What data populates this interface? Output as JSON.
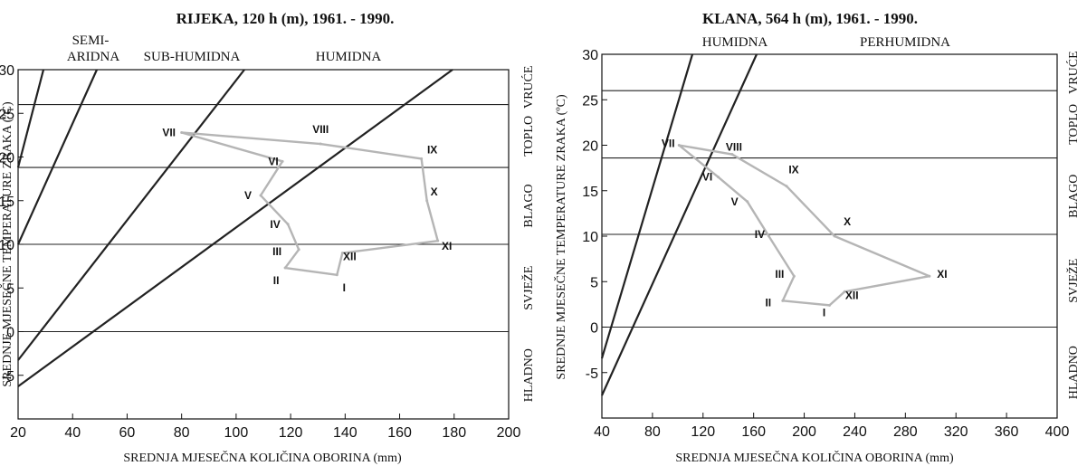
{
  "chart_data": [
    {
      "type": "line",
      "title": "RIJEKA, 120 h (m), 1961. - 1990.",
      "xlabel": "SREDNJA MJESEČNA KOLIČINA OBORINA (mm)",
      "ylabel": "SREDNJE MJESEČNE TEMPERATURE ZRAKA (ºC)",
      "xlim": [
        20,
        200
      ],
      "ylim": [
        -10,
        30
      ],
      "xticks": [
        "20",
        "40",
        "60",
        "80",
        "100",
        "120",
        "140",
        "160",
        "180",
        "200"
      ],
      "yticks": [
        "-5",
        "0",
        "5",
        "10",
        "15",
        "20",
        "25",
        "30"
      ],
      "humidity_zones": [
        "SEMI-\nARIDNA",
        "SUB-HUMIDNA",
        "HUMIDNA"
      ],
      "temperature_bands": [
        "HLADNO",
        "SVJEŽE",
        "BLAGO",
        "TOPLO",
        "VRUĆE"
      ],
      "band_limits": [
        0,
        10,
        18.8,
        26
      ],
      "climograph": {
        "months": [
          "I",
          "II",
          "III",
          "IV",
          "V",
          "VI",
          "VII",
          "VIII",
          "IX",
          "X",
          "XI",
          "XII"
        ],
        "precipitation": [
          137,
          118,
          123,
          119,
          109,
          117,
          80,
          131,
          168,
          170,
          174,
          139
        ],
        "temperature": [
          6.5,
          7.3,
          9.4,
          12.3,
          15.6,
          19.5,
          22.8,
          21.5,
          19.8,
          15.0,
          10.4,
          9.0
        ]
      }
    },
    {
      "type": "line",
      "title": "KLANA, 564 h (m), 1961. - 1990.",
      "xlabel": "SREDNJA MJESEČNA KOLIČINA OBORINA (mm)",
      "ylabel": "SREDNJE MJESEČNE TEMPERATURE ZRAKA (ºC)",
      "xlim": [
        40,
        400
      ],
      "ylim": [
        -10,
        30
      ],
      "xticks": [
        "40",
        "80",
        "120",
        "160",
        "200",
        "240",
        "280",
        "320",
        "360",
        "400"
      ],
      "yticks": [
        "-5",
        "0",
        "5",
        "10",
        "15",
        "20",
        "25",
        "30"
      ],
      "humidity_zones": [
        "HUMIDNA",
        "PERHUMIDNA"
      ],
      "temperature_bands": [
        "HLADNO",
        "SVJEŽE",
        "BLAGO",
        "TOPLO",
        "VRUĆE"
      ],
      "band_limits": [
        0,
        10.2,
        18.6,
        26
      ],
      "climograph": {
        "months": [
          "I",
          "II",
          "III",
          "IV",
          "V",
          "VI",
          "VII",
          "VIII",
          "IX",
          "X",
          "XI",
          "XII"
        ],
        "precipitation": [
          220,
          183,
          192,
          172,
          155,
          132,
          101,
          143,
          186,
          224,
          299,
          232
        ],
        "temperature": [
          2.4,
          2.9,
          5.6,
          10.0,
          13.8,
          16.5,
          20.0,
          19.0,
          15.5,
          10.0,
          5.6,
          3.9
        ]
      }
    }
  ]
}
